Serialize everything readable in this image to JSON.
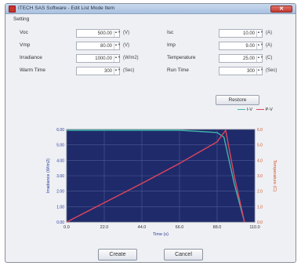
{
  "window": {
    "title": "ITECH SAS Software - Edit List Mode Item",
    "close_glyph": "✕"
  },
  "setting": {
    "group_label": "Setting",
    "left_fields": [
      {
        "label": "Voc",
        "value": "500.00",
        "unit": "(V)"
      },
      {
        "label": "Vmp",
        "value": "80.00",
        "unit": "(V)"
      },
      {
        "label": "Irradiance",
        "value": "1000.00",
        "unit": "(W/m2)"
      },
      {
        "label": "Warm Time",
        "value": "300",
        "unit": "(Sec)"
      }
    ],
    "right_fields": [
      {
        "label": "Isc",
        "value": "10.00",
        "unit": "(A)"
      },
      {
        "label": "Imp",
        "value": "9.00",
        "unit": "(A)"
      },
      {
        "label": "Temperature",
        "value": "25.00",
        "unit": "(C)"
      },
      {
        "label": "Run Time",
        "value": "300",
        "unit": "(Sec)"
      }
    ],
    "spin_arrows": "▲▼",
    "restore_label": "Restore"
  },
  "legend": [
    {
      "name": "I-V",
      "color": "#3fb5a8"
    },
    {
      "name": "P-V",
      "color": "#e0455c"
    }
  ],
  "chart_data": {
    "type": "line",
    "xlabel": "Time (s)",
    "ylabel_left": "Irradiance (W/m2)",
    "ylabel_right": "Temperature (C)",
    "x_ticks": [
      "0.0",
      "22.0",
      "44.0",
      "66.0",
      "88.0",
      "110.0"
    ],
    "xlim": [
      0,
      110
    ],
    "ylim": [
      0,
      6
    ],
    "y_ticks_left": [
      "0.00",
      "1.00",
      "2.00",
      "3.00",
      "4.00",
      "5.00",
      "6.00"
    ],
    "y_ticks_right": [
      "0.0",
      "1.0",
      "2.0",
      "3.0",
      "4.0",
      "5.0",
      "6.0"
    ],
    "grid": true,
    "background": "#1f2a6b",
    "series": [
      {
        "name": "I-V",
        "color": "#3fb5a8",
        "x": [
          0,
          66,
          88,
          92,
          98,
          104
        ],
        "y": [
          5.95,
          5.95,
          5.8,
          5.5,
          2.5,
          0
        ]
      },
      {
        "name": "P-V",
        "color": "#e0455c",
        "x": [
          0,
          22,
          44,
          66,
          88,
          93,
          98,
          104
        ],
        "y": [
          0,
          1.25,
          2.5,
          3.8,
          5.2,
          5.95,
          3.0,
          0
        ]
      }
    ]
  },
  "buttons": {
    "create_label": "Create",
    "cancel_label": "Cancel"
  }
}
